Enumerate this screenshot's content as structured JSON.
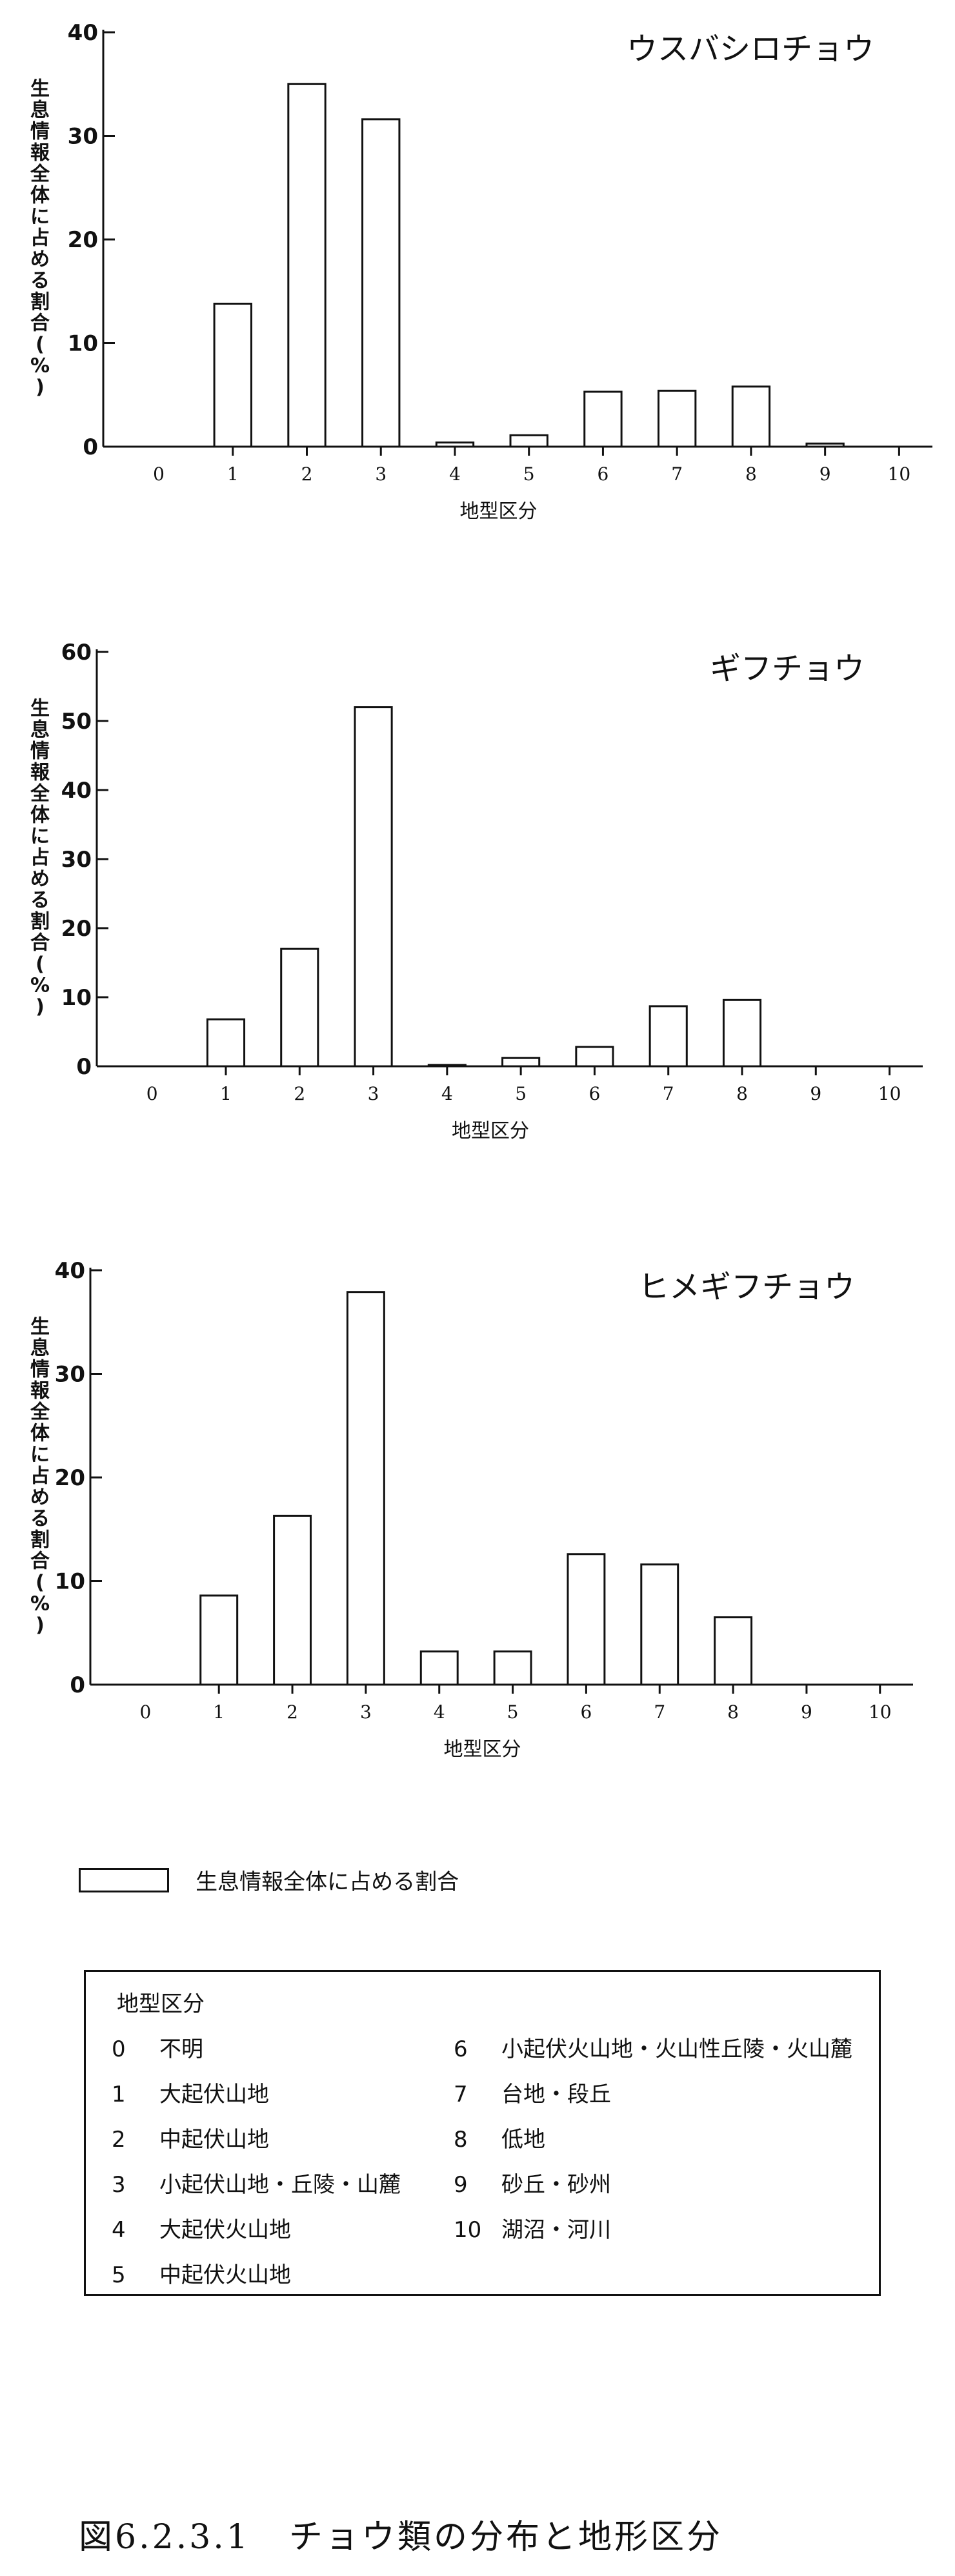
{
  "chart_data": [
    {
      "type": "bar",
      "title": "ウスバシロチョウ",
      "categories": [
        "0",
        "1",
        "2",
        "3",
        "4",
        "5",
        "6",
        "7",
        "8",
        "9",
        "10"
      ],
      "values": [
        0,
        13.8,
        35.0,
        31.6,
        0.4,
        1.1,
        5.3,
        5.4,
        5.8,
        0.3,
        0
      ],
      "ylabel": "生息情報全体に占める割合(%)",
      "xlabel": "地型区分",
      "ylim": [
        0,
        40
      ],
      "yticks": [
        0,
        10,
        20,
        30,
        40
      ]
    },
    {
      "type": "bar",
      "title": "ギフチョウ",
      "categories": [
        "0",
        "1",
        "2",
        "3",
        "4",
        "5",
        "6",
        "7",
        "8",
        "9",
        "10"
      ],
      "values": [
        0,
        6.8,
        17.0,
        52.0,
        0.2,
        1.2,
        2.8,
        8.7,
        9.6,
        0,
        0
      ],
      "ylabel": "生息情報全体に占める割合(%)",
      "xlabel": "地型区分",
      "ylim": [
        0,
        60
      ],
      "yticks": [
        0,
        10,
        20,
        30,
        40,
        50,
        60
      ]
    },
    {
      "type": "bar",
      "title": "ヒメギフチョウ",
      "categories": [
        "0",
        "1",
        "2",
        "3",
        "4",
        "5",
        "6",
        "7",
        "8",
        "9",
        "10"
      ],
      "values": [
        0,
        8.6,
        16.3,
        37.9,
        3.2,
        3.2,
        12.6,
        11.6,
        6.5,
        0,
        0
      ],
      "ylabel": "生息情報全体に占める割合(%)",
      "xlabel": "地型区分",
      "ylim": [
        0,
        40
      ],
      "yticks": [
        0,
        10,
        20,
        30,
        40
      ]
    }
  ],
  "series_legend": {
    "label": "生息情報全体に占める割合"
  },
  "category_legend": {
    "title": "地型区分",
    "left": [
      {
        "code": "0",
        "label": "不明"
      },
      {
        "code": "1",
        "label": "大起伏山地"
      },
      {
        "code": "2",
        "label": "中起伏山地"
      },
      {
        "code": "3",
        "label": "小起伏山地・丘陵・山麓"
      },
      {
        "code": "4",
        "label": "大起伏火山地"
      },
      {
        "code": "5",
        "label": "中起伏火山地"
      }
    ],
    "right": [
      {
        "code": "6",
        "label": "小起伏火山地・火山性丘陵・火山麓"
      },
      {
        "code": "7",
        "label": "台地・段丘"
      },
      {
        "code": "8",
        "label": "低地"
      },
      {
        "code": "9",
        "label": "砂丘・砂州"
      },
      {
        "code": "10",
        "label": "湖沼・河川"
      }
    ]
  },
  "caption": {
    "number": "図6.2.3.1",
    "text": "チョウ類の分布と地形区分"
  }
}
